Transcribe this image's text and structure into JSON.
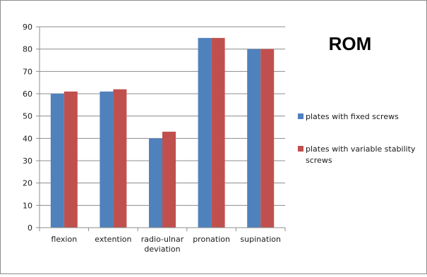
{
  "chart_data": {
    "type": "bar",
    "title": "ROM",
    "xlabel": "",
    "ylabel": "",
    "ylim": [
      0,
      90
    ],
    "yticks": [
      0,
      10,
      20,
      30,
      40,
      50,
      60,
      70,
      80,
      90
    ],
    "grid": true,
    "legend_position": "right",
    "categories": [
      [
        "flexion"
      ],
      [
        "extention"
      ],
      [
        "radio-ulnar",
        "deviation"
      ],
      [
        "pronation"
      ],
      [
        "supination"
      ]
    ],
    "series": [
      {
        "name": "plates with fixed screws",
        "name_lines": [
          "plates with fixed screws"
        ],
        "color": "#4f81bd",
        "values": [
          60,
          61,
          40,
          85,
          80
        ]
      },
      {
        "name": "plates with variable stability screws",
        "name_lines": [
          "plates with variable stability",
          "screws"
        ],
        "color": "#c0504d",
        "values": [
          61,
          62,
          43,
          85,
          80
        ]
      }
    ]
  }
}
